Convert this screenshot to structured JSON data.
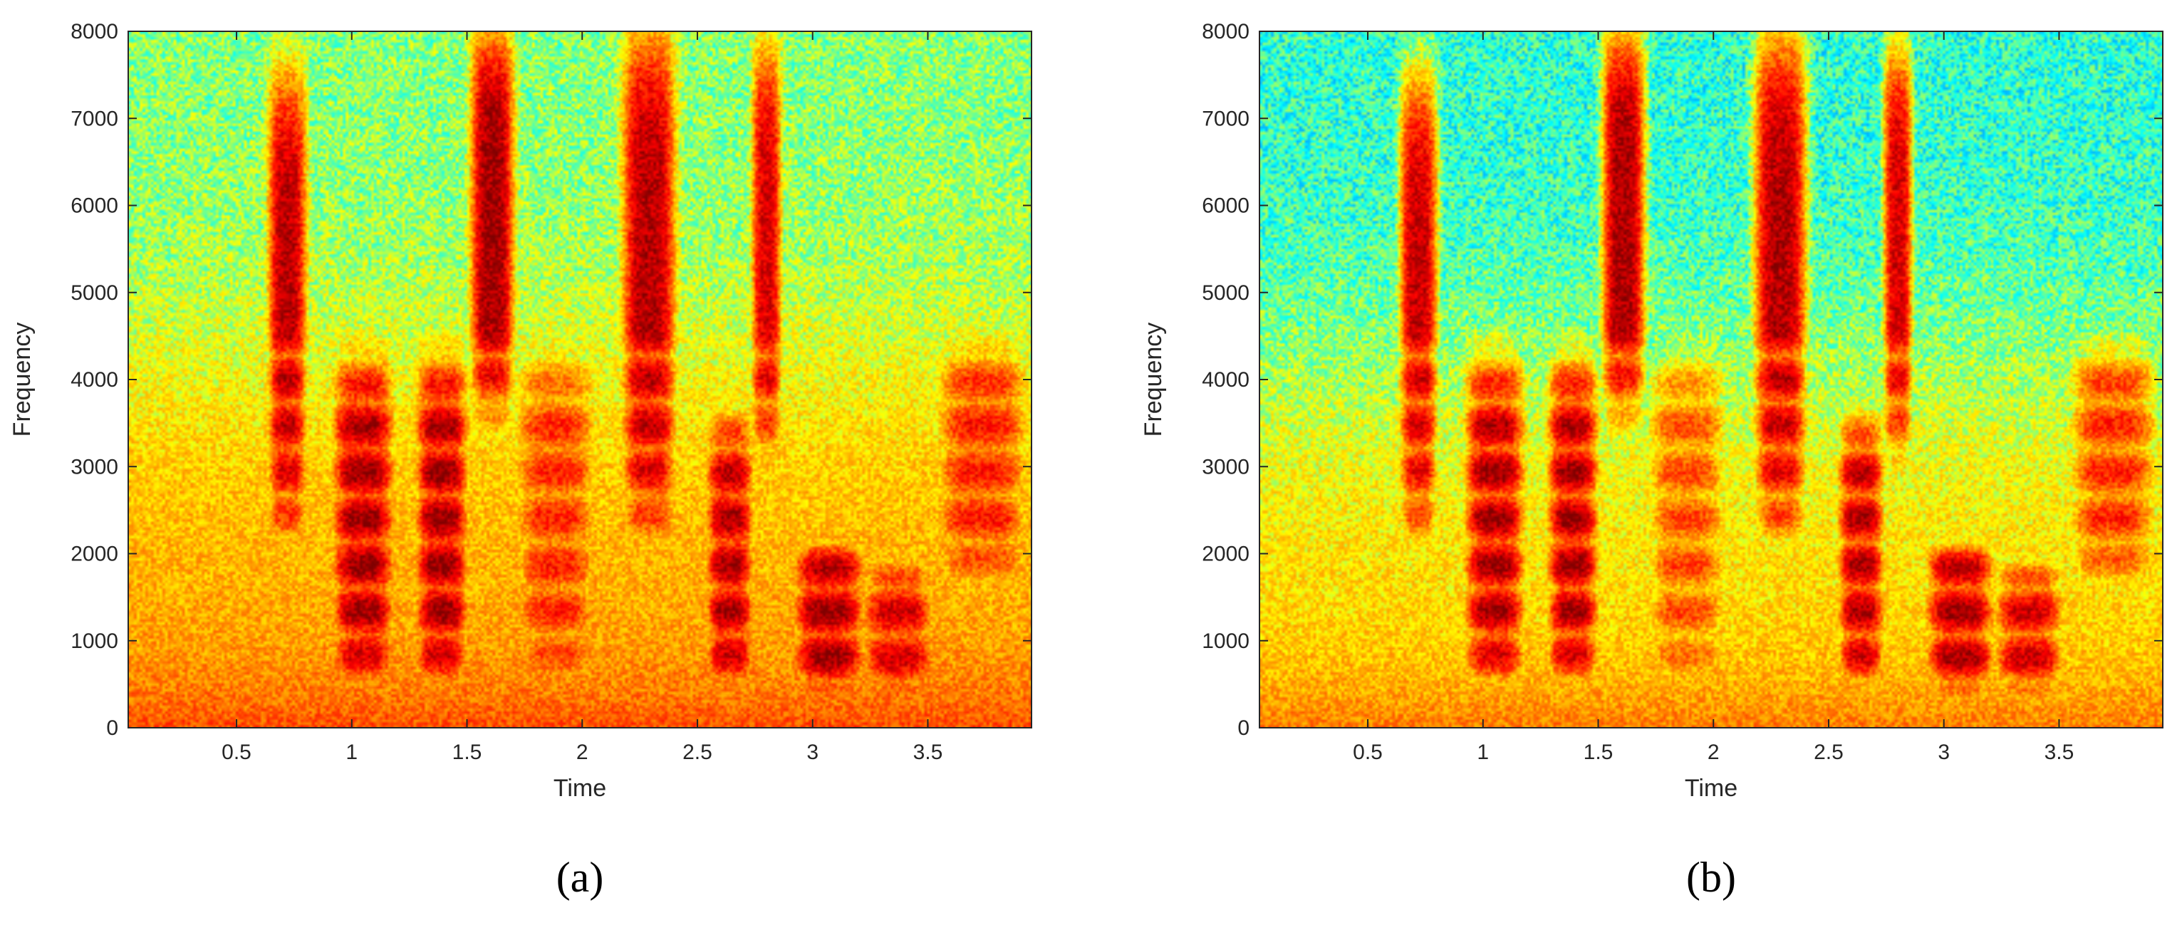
{
  "colors": {
    "colormap": [
      "#00008f",
      "#0000ff",
      "#00ffff",
      "#ffff00",
      "#ff7f00",
      "#ff0000",
      "#800000"
    ],
    "axis": "#262626",
    "background": "#ffffff"
  },
  "chart_data": [
    {
      "type": "heatmap",
      "panel_label": "(a)",
      "xlabel": "Time",
      "ylabel": "Frequency",
      "xlim": [
        0.03,
        3.95
      ],
      "ylim": [
        0,
        8000
      ],
      "x_ticks": [
        0.5,
        1,
        1.5,
        2,
        2.5,
        3,
        3.5
      ],
      "x_tick_labels": [
        "0.5",
        "1",
        "1.5",
        "2",
        "2.5",
        "3",
        "3.5"
      ],
      "y_ticks": [
        0,
        1000,
        2000,
        3000,
        4000,
        5000,
        6000,
        7000,
        8000
      ],
      "y_tick_labels": [
        "0",
        "1000",
        "2000",
        "3000",
        "4000",
        "5000",
        "6000",
        "7000",
        "8000"
      ],
      "grid": false,
      "noise_floor": 0.42,
      "background_ridge": 0.0,
      "energy_segments": [
        {
          "t": [
            0.64,
            0.8
          ],
          "f": [
            2000,
            7500
          ],
          "level": 0.92
        },
        {
          "t": [
            0.92,
            1.18
          ],
          "f": [
            300,
            4300
          ],
          "level": 0.97
        },
        {
          "t": [
            1.28,
            1.5
          ],
          "f": [
            300,
            4300
          ],
          "level": 0.98
        },
        {
          "t": [
            1.52,
            1.7
          ],
          "f": [
            3500,
            8000
          ],
          "level": 0.95
        },
        {
          "t": [
            1.72,
            2.05
          ],
          "f": [
            300,
            4300
          ],
          "level": 0.8
        },
        {
          "t": [
            2.18,
            2.4
          ],
          "f": [
            2000,
            8000
          ],
          "level": 0.93
        },
        {
          "t": [
            2.54,
            2.74
          ],
          "f": [
            300,
            3600
          ],
          "level": 0.95
        },
        {
          "t": [
            2.74,
            2.86
          ],
          "f": [
            3000,
            7800
          ],
          "level": 0.88
        },
        {
          "t": [
            2.92,
            3.22
          ],
          "f": [
            300,
            2200
          ],
          "level": 0.97
        },
        {
          "t": [
            3.22,
            3.52
          ],
          "f": [
            300,
            1900
          ],
          "level": 0.9
        },
        {
          "t": [
            3.55,
            3.92
          ],
          "f": [
            1600,
            4400
          ],
          "level": 0.82
        }
      ]
    },
    {
      "type": "heatmap",
      "panel_label": "(b)",
      "xlabel": "Time",
      "ylabel": "Frequency",
      "xlim": [
        0.03,
        3.95
      ],
      "ylim": [
        0,
        8000
      ],
      "x_ticks": [
        0.5,
        1,
        1.5,
        2,
        2.5,
        3,
        3.5
      ],
      "x_tick_labels": [
        "0.5",
        "1",
        "1.5",
        "2",
        "2.5",
        "3",
        "3.5"
      ],
      "y_ticks": [
        0,
        1000,
        2000,
        3000,
        4000,
        5000,
        6000,
        7000,
        8000
      ],
      "y_tick_labels": [
        "0",
        "1000",
        "2000",
        "3000",
        "4000",
        "5000",
        "6000",
        "7000",
        "8000"
      ],
      "grid": false,
      "noise_floor": 0.36,
      "background_ridge": 0.0,
      "energy_segments": [
        {
          "t": [
            0.64,
            0.8
          ],
          "f": [
            2000,
            7500
          ],
          "level": 0.9
        },
        {
          "t": [
            0.92,
            1.18
          ],
          "f": [
            300,
            4300
          ],
          "level": 0.97
        },
        {
          "t": [
            1.28,
            1.5
          ],
          "f": [
            300,
            4300
          ],
          "level": 0.97
        },
        {
          "t": [
            1.52,
            1.7
          ],
          "f": [
            3500,
            8000
          ],
          "level": 0.94
        },
        {
          "t": [
            1.72,
            2.05
          ],
          "f": [
            300,
            4300
          ],
          "level": 0.75
        },
        {
          "t": [
            2.18,
            2.4
          ],
          "f": [
            2000,
            8000
          ],
          "level": 0.93
        },
        {
          "t": [
            2.54,
            2.74
          ],
          "f": [
            300,
            3600
          ],
          "level": 0.95
        },
        {
          "t": [
            2.74,
            2.86
          ],
          "f": [
            3000,
            7800
          ],
          "level": 0.88
        },
        {
          "t": [
            2.92,
            3.22
          ],
          "f": [
            300,
            2200
          ],
          "level": 0.96
        },
        {
          "t": [
            3.22,
            3.52
          ],
          "f": [
            300,
            1900
          ],
          "level": 0.9
        },
        {
          "t": [
            3.55,
            3.92
          ],
          "f": [
            1600,
            4400
          ],
          "level": 0.8
        }
      ]
    }
  ]
}
